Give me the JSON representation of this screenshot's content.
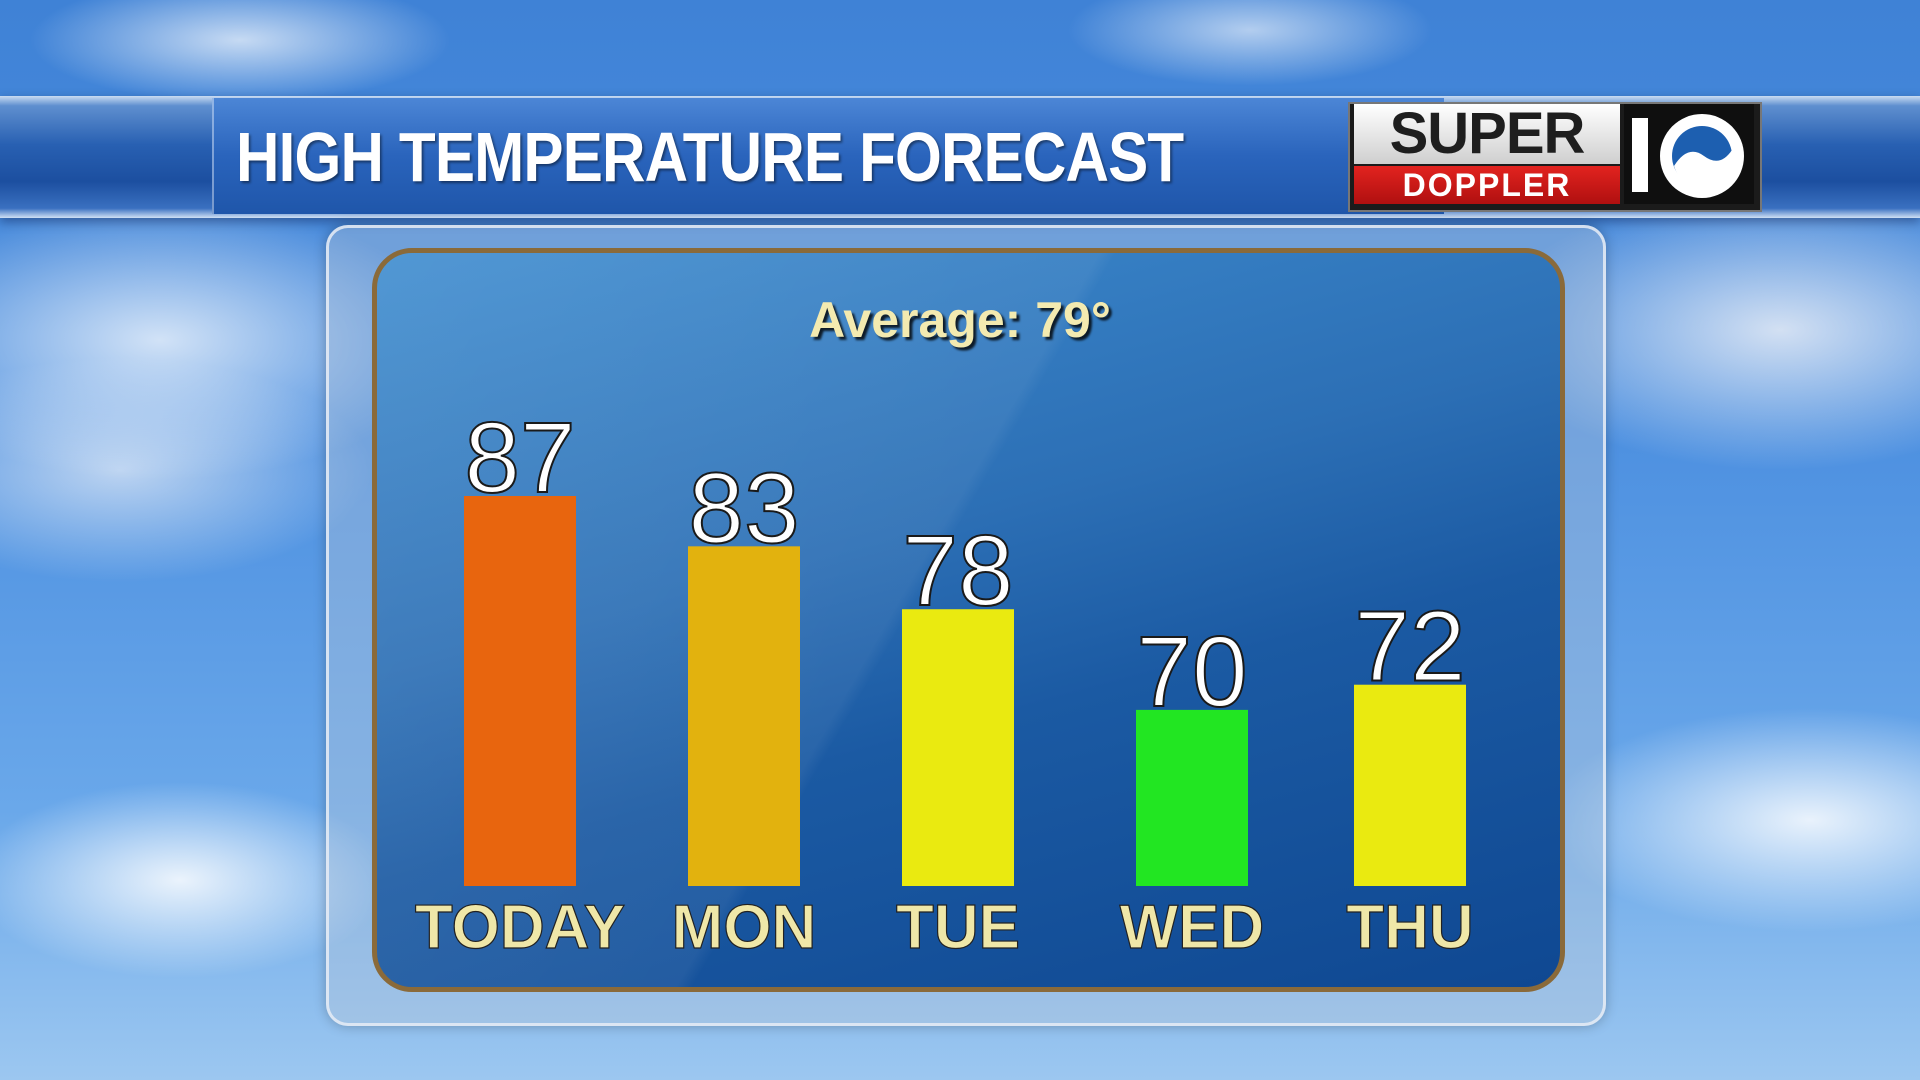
{
  "header": {
    "title": "HIGH TEMPERATURE FORECAST"
  },
  "logo": {
    "super": "SUPER",
    "doppler": "DOPPLER",
    "number": "10"
  },
  "subtitle": "Average: 79°",
  "chart_data": {
    "type": "bar",
    "title": "HIGH TEMPERATURE FORECAST",
    "subtitle": "Average: 79°",
    "categories": [
      "TODAY",
      "MON",
      "TUE",
      "WED",
      "THU"
    ],
    "values": [
      87,
      83,
      78,
      70,
      72
    ],
    "colors": [
      "#e8650e",
      "#e2b20e",
      "#eaea10",
      "#22e622",
      "#eaea10"
    ],
    "ylim": [
      56,
      87
    ],
    "grid": false,
    "legend": "none"
  }
}
